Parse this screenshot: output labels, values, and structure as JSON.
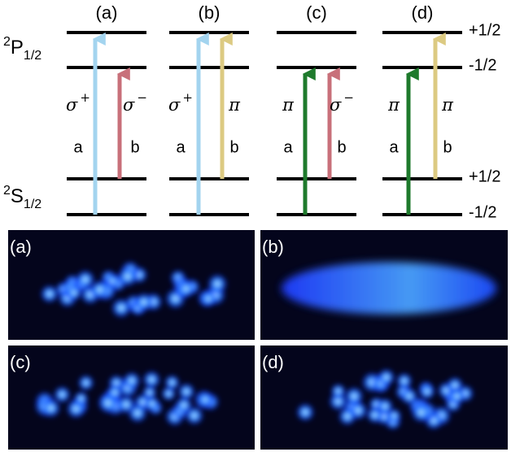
{
  "levels_diagram": {
    "columns": [
      {
        "label": "(a)",
        "transitions": [
          {
            "polarization": {
              "symbol": "σ",
              "sup": "+"
            },
            "beam": "a"
          },
          {
            "polarization": {
              "symbol": "σ",
              "sup": "−"
            },
            "beam": "b"
          }
        ]
      },
      {
        "label": "(b)",
        "transitions": [
          {
            "polarization": {
              "symbol": "σ",
              "sup": "+"
            },
            "beam": "a"
          },
          {
            "polarization": {
              "symbol": "π"
            },
            "beam": "b"
          }
        ]
      },
      {
        "label": "(c)",
        "transitions": [
          {
            "polarization": {
              "symbol": "π"
            },
            "beam": "a"
          },
          {
            "polarization": {
              "symbol": "σ",
              "sup": "−"
            },
            "beam": "b"
          }
        ]
      },
      {
        "label": "(d)",
        "transitions": [
          {
            "polarization": {
              "symbol": "π"
            },
            "beam": "a"
          },
          {
            "polarization": {
              "symbol": "π"
            },
            "beam": "b"
          }
        ]
      }
    ],
    "states": [
      {
        "pre": "2",
        "main": "P",
        "sub": "1/2"
      },
      {
        "pre": "2",
        "main": "S",
        "sub": "1/2"
      }
    ],
    "sublevels": [
      "+1/2",
      "-1/2",
      "+1/2",
      "-1/2"
    ]
  },
  "images": [
    {
      "label": "(a)"
    },
    {
      "label": "(b)"
    },
    {
      "label": "(c)"
    },
    {
      "label": "(d)"
    }
  ]
}
